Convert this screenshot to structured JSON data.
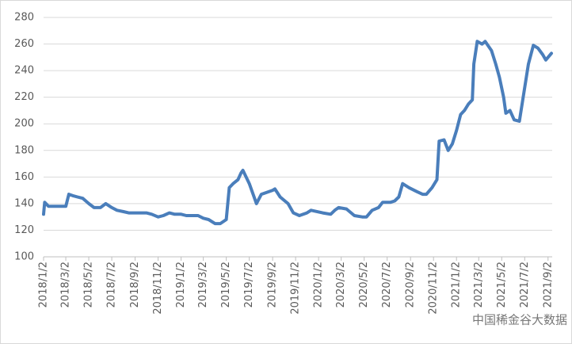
{
  "chart_data": {
    "type": "line",
    "x": [
      "2018/1/2",
      "2018/1/5",
      "2018/1/15",
      "2018/2/1",
      "2018/2/15",
      "2018/3/2",
      "2018/3/10",
      "2018/3/20",
      "2018/4/2",
      "2018/4/16",
      "2018/5/2",
      "2018/5/16",
      "2018/6/2",
      "2018/6/16",
      "2018/7/2",
      "2018/7/16",
      "2018/8/2",
      "2018/8/16",
      "2018/9/2",
      "2018/9/16",
      "2018/10/2",
      "2018/10/16",
      "2018/11/2",
      "2018/11/16",
      "2018/12/2",
      "2018/12/16",
      "2019/1/2",
      "2019/1/16",
      "2019/2/2",
      "2019/2/16",
      "2019/3/2",
      "2019/3/16",
      "2019/4/2",
      "2019/4/16",
      "2019/5/2",
      "2019/5/10",
      "2019/5/20",
      "2019/6/2",
      "2019/6/10",
      "2019/6/15",
      "2019/7/2",
      "2019/7/21",
      "2019/8/3",
      "2019/9/2",
      "2019/9/8",
      "2019/9/22",
      "2019/10/13",
      "2019/10/27",
      "2019/11/12",
      "2019/12/2",
      "2019/12/13",
      "2020/1/13",
      "2020/2/3",
      "2020/2/14",
      "2020/2/24",
      "2020/3/16",
      "2020/4/6",
      "2020/4/27",
      "2020/5/8",
      "2020/5/23",
      "2020/6/9",
      "2020/6/20",
      "2020/7/11",
      "2020/7/22",
      "2020/8/2",
      "2020/8/12",
      "2020/8/29",
      "2020/9/19",
      "2020/10/4",
      "2020/10/14",
      "2020/10/29",
      "2020/11/11",
      "2020/11/17",
      "2020/11/30",
      "2020/12/11",
      "2020/12/22",
      "2021/1/2",
      "2021/1/13",
      "2021/1/23",
      "2021/2/3",
      "2021/2/13",
      "2021/2/17",
      "2021/2/26",
      "2021/3/11",
      "2021/3/19",
      "2021/4/5",
      "2021/4/16",
      "2021/4/26",
      "2021/5/7",
      "2021/5/13",
      "2021/5/24",
      "2021/6/4",
      "2021/6/18",
      "2021/6/29",
      "2021/7/12",
      "2021/7/25",
      "2021/8/6",
      "2021/8/19",
      "2021/8/27",
      "2021/9/11"
    ],
    "values": [
      132,
      141,
      138,
      138,
      138,
      138,
      147,
      146,
      145,
      144,
      140,
      137,
      137,
      140,
      137,
      135,
      134,
      133,
      133,
      133,
      133,
      132,
      130,
      131,
      133,
      132,
      132,
      131,
      131,
      131,
      129,
      128,
      125,
      125,
      128,
      152,
      155,
      158,
      163,
      165,
      155,
      140,
      147,
      150,
      151,
      145,
      140,
      133,
      131,
      133,
      135,
      133,
      132,
      135,
      137,
      136,
      131,
      130,
      130,
      135,
      137,
      141,
      141,
      142,
      145,
      155,
      152,
      149,
      147,
      147,
      152,
      158,
      187,
      188,
      180,
      185,
      195,
      207,
      210,
      215,
      218,
      245,
      262,
      260,
      262,
      255,
      245,
      235,
      220,
      208,
      210,
      203,
      202,
      222,
      245,
      259,
      257,
      252,
      248,
      253
    ],
    "color": "#4a7ebb",
    "xlim": [
      "2018/1/2",
      "2021/9/13"
    ],
    "xticks": [
      "2018/1/2",
      "2018/3/2",
      "2018/5/2",
      "2018/7/2",
      "2018/9/2",
      "2018/11/2",
      "2019/1/2",
      "2019/3/2",
      "2019/5/2",
      "2019/7/2",
      "2019/9/2",
      "2019/11/2",
      "2020/1/2",
      "2020/3/2",
      "2020/5/2",
      "2020/7/2",
      "2020/9/2",
      "2020/11/2",
      "2021/1/2",
      "2021/3/2",
      "2021/5/2",
      "2021/7/2",
      "2021/9/2"
    ],
    "ylim": [
      100,
      280
    ],
    "yticks": [
      100,
      120,
      140,
      160,
      180,
      200,
      220,
      240,
      260,
      280
    ],
    "grid": true,
    "annotation": "中国稀金谷大数据"
  }
}
